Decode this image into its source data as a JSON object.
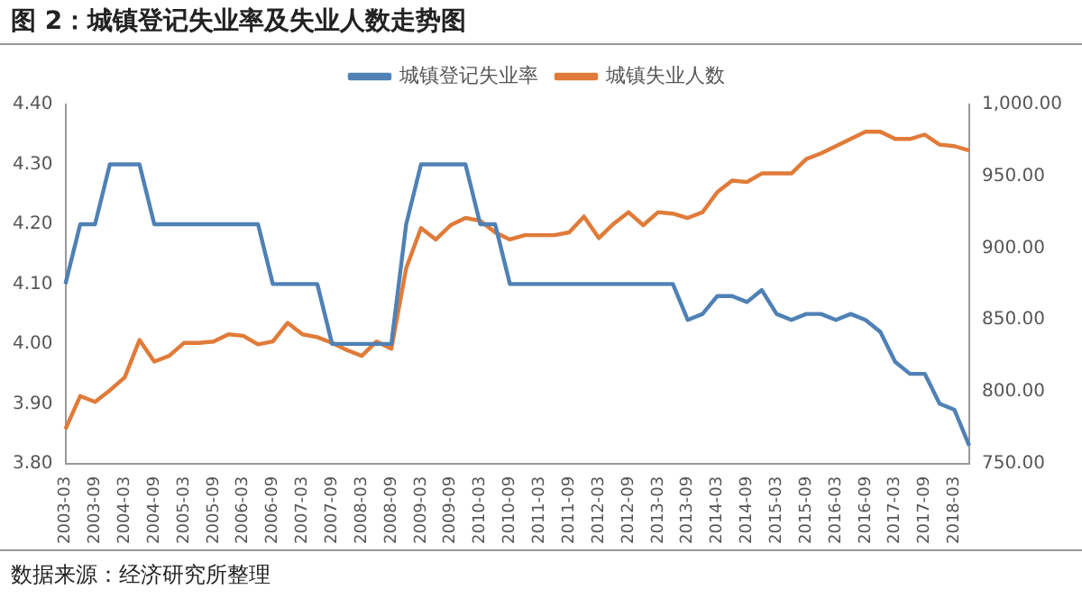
{
  "chart_data": {
    "type": "line",
    "title": "图 2：城镇登记失业率及失业人数走势图",
    "categories": [
      "2003-03",
      null,
      "2003-09",
      null,
      "2004-03",
      null,
      "2004-09",
      null,
      "2005-03",
      null,
      "2005-09",
      null,
      "2006-03",
      null,
      "2006-09",
      null,
      "2007-03",
      null,
      "2007-09",
      null,
      "2008-03",
      null,
      "2008-09",
      null,
      "2009-03",
      null,
      "2009-09",
      null,
      "2010-03",
      null,
      "2010-09",
      null,
      "2011-03",
      null,
      "2011-09",
      null,
      "2012-03",
      null,
      "2012-09",
      null,
      "2013-03",
      null,
      "2013-09",
      null,
      "2014-03",
      null,
      "2014-09",
      null,
      "2015-03",
      null,
      "2015-09",
      null,
      "2016-03",
      null,
      "2016-09",
      null,
      "2017-03",
      null,
      "2017-09",
      null,
      "2018-03",
      null
    ],
    "series": [
      {
        "name": "城镇登记失业率",
        "color": "#4f81b5",
        "values": [
          4.1,
          4.2,
          4.2,
          4.3,
          4.3,
          4.3,
          4.2,
          4.2,
          4.2,
          4.2,
          4.2,
          4.2,
          4.2,
          4.2,
          4.1,
          4.1,
          4.1,
          4.1,
          4.0,
          4.0,
          4.0,
          4.0,
          4.0,
          4.2,
          4.3,
          4.3,
          4.3,
          4.3,
          4.2,
          4.2,
          4.1,
          4.1,
          4.1,
          4.1,
          4.1,
          4.1,
          4.1,
          4.1,
          4.1,
          4.1,
          4.1,
          4.1,
          4.04,
          4.05,
          4.08,
          4.08,
          4.07,
          4.09,
          4.05,
          4.04,
          4.05,
          4.05,
          4.04,
          4.05,
          4.04,
          4.02,
          3.97,
          3.95,
          3.95,
          3.9,
          3.89,
          3.83
        ]
      },
      {
        "name": "城镇失业人数",
        "color": "#e07b39",
        "axis": "y2",
        "values": [
          774,
          797,
          793,
          801,
          810,
          836,
          821,
          825,
          834,
          834,
          835,
          840,
          839,
          833,
          835,
          848,
          840,
          838,
          834,
          829,
          825,
          835,
          830,
          886,
          914,
          906,
          916,
          921,
          919,
          911,
          906,
          909,
          909,
          909,
          911,
          922,
          907,
          917,
          925,
          916,
          925,
          924,
          921,
          925,
          939,
          947,
          946,
          952,
          952,
          952,
          962,
          966,
          971,
          976,
          981,
          981,
          976,
          976,
          979,
          972,
          971,
          968
        ]
      }
    ],
    "ylim": [
      3.8,
      4.4
    ],
    "yticks": [
      {
        "value": 3.8,
        "label": "3.80"
      },
      {
        "value": 3.9,
        "label": "3.90"
      },
      {
        "value": 4.0,
        "label": "4.00"
      },
      {
        "value": 4.1,
        "label": "4.10"
      },
      {
        "value": 4.2,
        "label": "4.20"
      },
      {
        "value": 4.3,
        "label": "4.30"
      },
      {
        "value": 4.4,
        "label": "4.40"
      }
    ],
    "y2lim": [
      750,
      1000
    ],
    "y2ticks": [
      {
        "value": 750,
        "label": "750.00"
      },
      {
        "value": 800,
        "label": "800.00"
      },
      {
        "value": 850,
        "label": "850.00"
      },
      {
        "value": 900,
        "label": "900.00"
      },
      {
        "value": 950,
        "label": "950.00"
      },
      {
        "value": 1000,
        "label": "1,000.00"
      }
    ],
    "grid": false,
    "legend": "top",
    "marker": "none",
    "line_style": "solid",
    "annotations": [
      "数据来源：经济研究所整理"
    ]
  }
}
